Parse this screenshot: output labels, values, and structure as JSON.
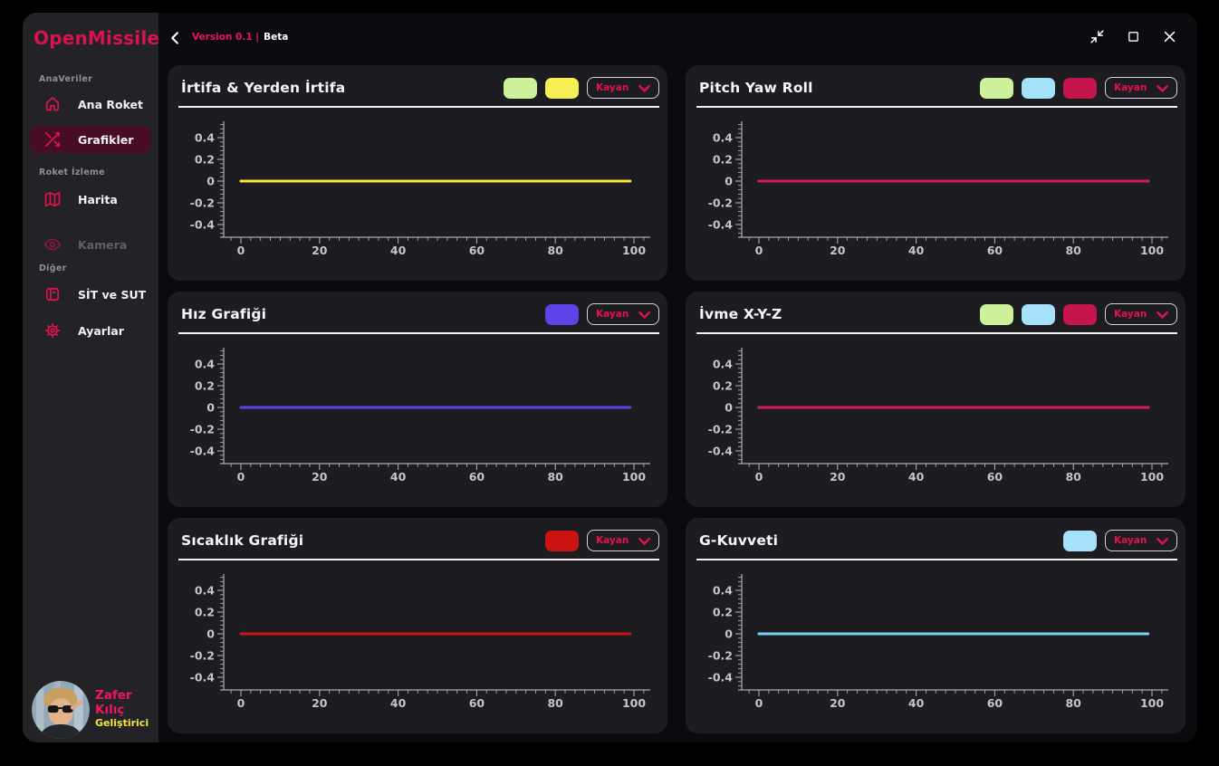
{
  "app": {
    "logo": "OpenMissile"
  },
  "topbar": {
    "back_icon": "chevron-left-icon",
    "version_label": "Version 0.1 |",
    "beta_label": "Beta",
    "controls": [
      {
        "icon": "compress-icon"
      },
      {
        "icon": "maximize-icon"
      },
      {
        "icon": "close-icon"
      }
    ]
  },
  "sidebar": {
    "sections": [
      {
        "label": "AnaVeriler",
        "items": [
          {
            "label": "Ana Roket",
            "icon": "home-icon",
            "active": false,
            "disabled": false
          },
          {
            "label": "Grafikler",
            "icon": "shuffle-icon",
            "active": true,
            "disabled": false
          }
        ]
      },
      {
        "label": "Roket İzleme",
        "items": [
          {
            "label": "Harita",
            "icon": "map-icon",
            "active": false,
            "disabled": false
          },
          {
            "label": "Kamera",
            "icon": "eye-icon",
            "active": false,
            "disabled": true
          }
        ]
      },
      {
        "label": "Diğer",
        "items": [
          {
            "label": "SİT ve SUT",
            "icon": "card-reader-icon",
            "active": false,
            "disabled": false
          },
          {
            "label": "Ayarlar",
            "icon": "gear-icon",
            "active": false,
            "disabled": false
          }
        ]
      }
    ],
    "user": {
      "name": "Zafer Kılıç",
      "role": "Geliştirici",
      "avatar_icon": "avatar-photo"
    }
  },
  "colors": {
    "accent": "#e0134f",
    "active_item_bg": "#470d24",
    "window_bg": "#0a0a0f",
    "sidebar_bg": "#232327",
    "panel_bg": "#1c1c21",
    "axis": "#a9a9a9",
    "tick_label": "#c6c6c6",
    "name_pink": "#ef1660",
    "role_yellow": "#f2e63d"
  },
  "charts": [
    {
      "id": "irtifa",
      "title": "İrtifa & Yerden İrtifa",
      "legend_swatches": [
        "#cdf09b",
        "#f6ee53"
      ],
      "dropdown_label": "Kayan",
      "chart_data": {
        "type": "line",
        "x_ticks": [
          0,
          20,
          40,
          60,
          80,
          100
        ],
        "y_ticks": [
          0.4,
          0.2,
          0,
          -0.2,
          -0.4
        ],
        "xlim": [
          -5.3,
          104.1
        ],
        "ylim": [
          -0.52,
          0.55
        ],
        "grid": false,
        "series": [
          {
            "color": "#cdf09b",
            "x": [
              0,
              99
            ],
            "y": [
              0,
              0
            ]
          },
          {
            "color": "#f0e53c",
            "x": [
              0,
              99
            ],
            "y": [
              0,
              0
            ]
          }
        ]
      }
    },
    {
      "id": "pitch-yaw-roll",
      "title": "Pitch Yaw Roll",
      "legend_swatches": [
        "#cdf09b",
        "#a5e1f8",
        "#c4164d"
      ],
      "dropdown_label": "Kayan",
      "chart_data": {
        "type": "line",
        "x_ticks": [
          0,
          20,
          40,
          60,
          80,
          100
        ],
        "y_ticks": [
          0.4,
          0.2,
          0,
          -0.2,
          -0.4
        ],
        "xlim": [
          -5.3,
          104.1
        ],
        "ylim": [
          -0.52,
          0.55
        ],
        "grid": false,
        "series": [
          {
            "color": "#cdf09b",
            "x": [
              0,
              99
            ],
            "y": [
              0,
              0
            ]
          },
          {
            "color": "#a5e1f8",
            "x": [
              0,
              99
            ],
            "y": [
              0,
              0
            ]
          },
          {
            "color": "#d6195c",
            "x": [
              0,
              99
            ],
            "y": [
              0,
              0
            ]
          }
        ]
      }
    },
    {
      "id": "hiz",
      "title": "Hız Grafiği",
      "legend_swatches": [
        "#5b43e8"
      ],
      "dropdown_label": "Kayan",
      "chart_data": {
        "type": "line",
        "x_ticks": [
          0,
          20,
          40,
          60,
          80,
          100
        ],
        "y_ticks": [
          0.4,
          0.2,
          0,
          -0.2,
          -0.4
        ],
        "xlim": [
          -5.3,
          104.1
        ],
        "ylim": [
          -0.52,
          0.55
        ],
        "grid": false,
        "series": [
          {
            "color": "#5b43e8",
            "x": [
              0,
              99
            ],
            "y": [
              0,
              0
            ]
          }
        ]
      }
    },
    {
      "id": "ivme",
      "title": "İvme X-Y-Z",
      "legend_swatches": [
        "#cdf09b",
        "#a5e1f8",
        "#c4164d"
      ],
      "dropdown_label": "Kayan",
      "chart_data": {
        "type": "line",
        "x_ticks": [
          0,
          20,
          40,
          60,
          80,
          100
        ],
        "y_ticks": [
          0.4,
          0.2,
          0,
          -0.2,
          -0.4
        ],
        "xlim": [
          -5.3,
          104.1
        ],
        "ylim": [
          -0.52,
          0.55
        ],
        "grid": false,
        "series": [
          {
            "color": "#cdf09b",
            "x": [
              0,
              99
            ],
            "y": [
              0,
              0
            ]
          },
          {
            "color": "#a5e1f8",
            "x": [
              0,
              99
            ],
            "y": [
              0,
              0
            ]
          },
          {
            "color": "#d6195c",
            "x": [
              0,
              99
            ],
            "y": [
              0,
              0
            ]
          }
        ]
      }
    },
    {
      "id": "sicaklik",
      "title": "Sıcaklık Grafiği",
      "legend_swatches": [
        "#cc1313"
      ],
      "dropdown_label": "Kayan",
      "chart_data": {
        "type": "line",
        "x_ticks": [
          0,
          20,
          40,
          60,
          80,
          100
        ],
        "y_ticks": [
          0.4,
          0.2,
          0,
          -0.2,
          -0.4
        ],
        "xlim": [
          -5.3,
          104.1
        ],
        "ylim": [
          -0.52,
          0.55
        ],
        "grid": false,
        "series": [
          {
            "color": "#cc1313",
            "x": [
              0,
              99
            ],
            "y": [
              0,
              0
            ]
          }
        ]
      }
    },
    {
      "id": "g-kuvveti",
      "title": "G-Kuvveti",
      "legend_swatches": [
        "#a5e1f8"
      ],
      "dropdown_label": "Kayan",
      "chart_data": {
        "type": "line",
        "x_ticks": [
          0,
          20,
          40,
          60,
          80,
          100
        ],
        "y_ticks": [
          0.4,
          0.2,
          0,
          -0.2,
          -0.4
        ],
        "xlim": [
          -5.3,
          104.1
        ],
        "ylim": [
          -0.52,
          0.55
        ],
        "grid": false,
        "series": [
          {
            "color": "#79d2f2",
            "x": [
              0,
              99
            ],
            "y": [
              0,
              0
            ]
          }
        ]
      }
    }
  ]
}
